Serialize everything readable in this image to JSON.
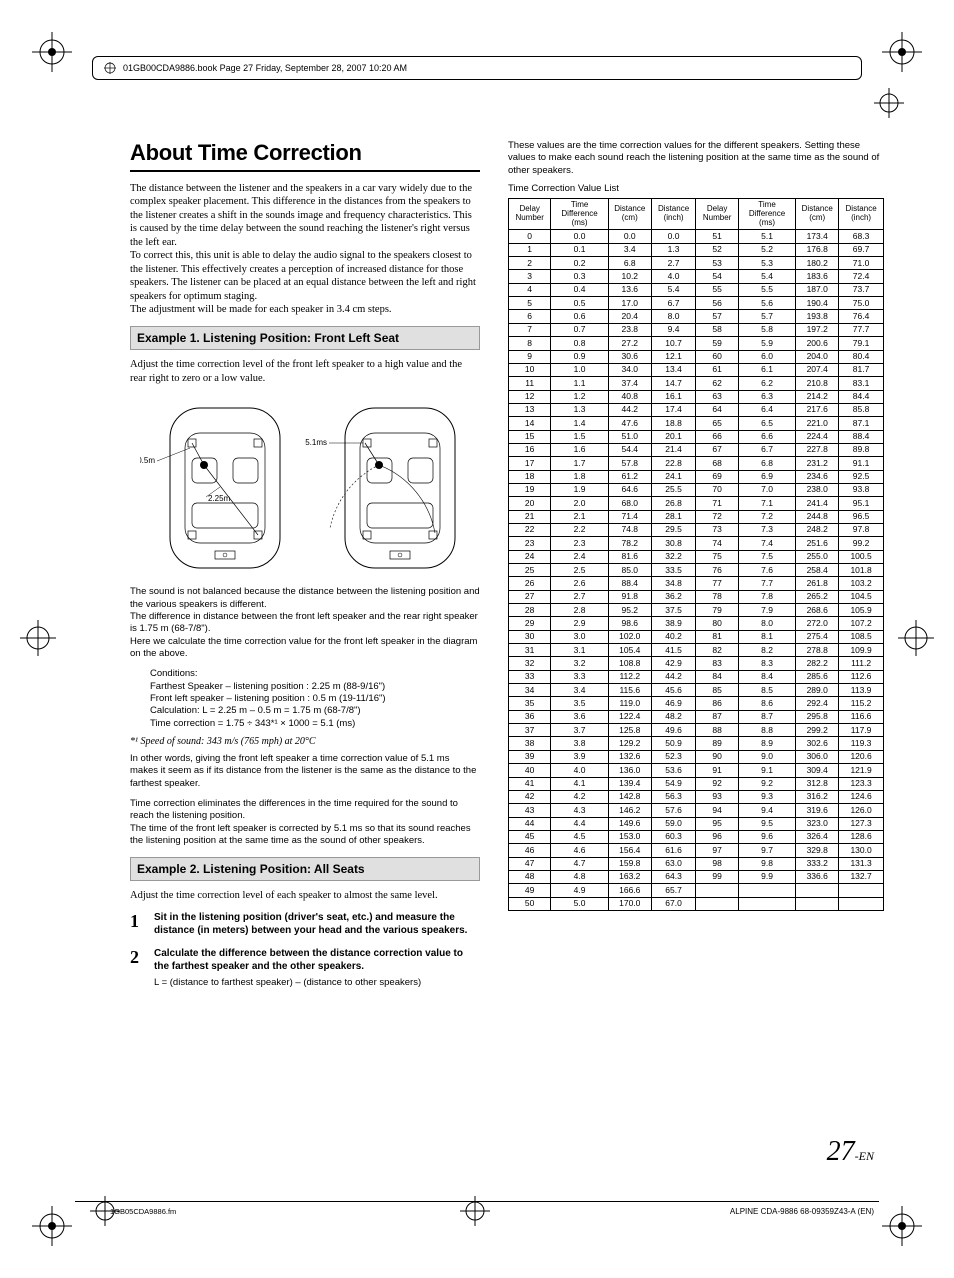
{
  "header": {
    "text": "01GB00CDA9886.book  Page 27  Friday, September 28, 2007  10:20 AM"
  },
  "title": "About Time Correction",
  "intro_para": "The distance between the listener and the speakers in a car vary widely due to the complex speaker placement. This difference in the distances from the speakers to the listener creates a shift in the sounds image and frequency characteristics. This is caused by the time delay between the sound reaching the listener's right versus the left ear.\nTo correct this, this unit is able to delay the audio signal to the speakers closest to the listener. This effectively creates a perception of increased distance for those speakers. The listener can be placed at an equal distance between the left and right speakers for optimum staging.\nThe adjustment will be made for each speaker in 3.4 cm steps.",
  "example1": {
    "heading": "Example 1. Listening Position: Front Left Seat",
    "lead": "Adjust the time correction level of the front left speaker to a high value and the rear right to zero or a low value.",
    "diagram_labels": {
      "d1": "0.5m",
      "d2": "2.25m",
      "d3": "5.1ms"
    },
    "after1": "The sound is not balanced because the distance between the listening position and the various speakers is different.\nThe difference in distance between the front left speaker and the rear right speaker is 1.75 m (68-7/8\").\nHere we calculate the time correction value for the front left speaker in the diagram on the above.",
    "conditions": "Conditions:\nFarthest Speaker – listening position : 2.25 m (88-9/16\")\nFront left speaker – listening position : 0.5 m (19-11/16\")\nCalculation: L = 2.25 m – 0.5 m = 1.75 m (68-7/8\")\nTime correction = 1.75 ÷ 343*¹ × 1000 = 5.1 (ms)",
    "footnote": "*¹ Speed of sound: 343 m/s (765 mph) at 20°C",
    "after2": "In other words, giving the front left speaker a time correction value of 5.1 ms makes it seem as if its distance from the listener is the same as the distance to the farthest speaker.",
    "after3": "Time correction eliminates the differences in the time required for the sound to reach the listening position.\nThe time of the front left speaker is corrected by 5.1 ms so that its sound reaches the listening position at the same time as the sound of other speakers."
  },
  "example2": {
    "heading": "Example 2. Listening Position: All Seats",
    "lead": "Adjust the time correction level of each speaker to almost the same level.",
    "steps": [
      {
        "num": "1",
        "text": "Sit in the listening position (driver's seat, etc.) and measure the distance (in meters) between your head and the various speakers."
      },
      {
        "num": "2",
        "text": "Calculate the difference between the distance correction value to the farthest speaker and the other speakers.",
        "sub": "L = (distance to farthest speaker) – (distance to other speakers)"
      }
    ]
  },
  "right": {
    "top_note": "These values are the time correction values for the different speakers. Setting these values to make each sound reach the listening position at the same time as the sound of other speakers.",
    "caption": "Time Correction Value List",
    "columns": [
      "Delay Number",
      "Time Difference (ms)",
      "Distance (cm)",
      "Distance (inch)",
      "Delay Number",
      "Time Difference (ms)",
      "Distance (cm)",
      "Distance (inch)"
    ],
    "rows": [
      [
        "0",
        "0.0",
        "0.0",
        "0.0",
        "51",
        "5.1",
        "173.4",
        "68.3"
      ],
      [
        "1",
        "0.1",
        "3.4",
        "1.3",
        "52",
        "5.2",
        "176.8",
        "69.7"
      ],
      [
        "2",
        "0.2",
        "6.8",
        "2.7",
        "53",
        "5.3",
        "180.2",
        "71.0"
      ],
      [
        "3",
        "0.3",
        "10.2",
        "4.0",
        "54",
        "5.4",
        "183.6",
        "72.4"
      ],
      [
        "4",
        "0.4",
        "13.6",
        "5.4",
        "55",
        "5.5",
        "187.0",
        "73.7"
      ],
      [
        "5",
        "0.5",
        "17.0",
        "6.7",
        "56",
        "5.6",
        "190.4",
        "75.0"
      ],
      [
        "6",
        "0.6",
        "20.4",
        "8.0",
        "57",
        "5.7",
        "193.8",
        "76.4"
      ],
      [
        "7",
        "0.7",
        "23.8",
        "9.4",
        "58",
        "5.8",
        "197.2",
        "77.7"
      ],
      [
        "8",
        "0.8",
        "27.2",
        "10.7",
        "59",
        "5.9",
        "200.6",
        "79.1"
      ],
      [
        "9",
        "0.9",
        "30.6",
        "12.1",
        "60",
        "6.0",
        "204.0",
        "80.4"
      ],
      [
        "10",
        "1.0",
        "34.0",
        "13.4",
        "61",
        "6.1",
        "207.4",
        "81.7"
      ],
      [
        "11",
        "1.1",
        "37.4",
        "14.7",
        "62",
        "6.2",
        "210.8",
        "83.1"
      ],
      [
        "12",
        "1.2",
        "40.8",
        "16.1",
        "63",
        "6.3",
        "214.2",
        "84.4"
      ],
      [
        "13",
        "1.3",
        "44.2",
        "17.4",
        "64",
        "6.4",
        "217.6",
        "85.8"
      ],
      [
        "14",
        "1.4",
        "47.6",
        "18.8",
        "65",
        "6.5",
        "221.0",
        "87.1"
      ],
      [
        "15",
        "1.5",
        "51.0",
        "20.1",
        "66",
        "6.6",
        "224.4",
        "88.4"
      ],
      [
        "16",
        "1.6",
        "54.4",
        "21.4",
        "67",
        "6.7",
        "227.8",
        "89.8"
      ],
      [
        "17",
        "1.7",
        "57.8",
        "22.8",
        "68",
        "6.8",
        "231.2",
        "91.1"
      ],
      [
        "18",
        "1.8",
        "61.2",
        "24.1",
        "69",
        "6.9",
        "234.6",
        "92.5"
      ],
      [
        "19",
        "1.9",
        "64.6",
        "25.5",
        "70",
        "7.0",
        "238.0",
        "93.8"
      ],
      [
        "20",
        "2.0",
        "68.0",
        "26.8",
        "71",
        "7.1",
        "241.4",
        "95.1"
      ],
      [
        "21",
        "2.1",
        "71.4",
        "28.1",
        "72",
        "7.2",
        "244.8",
        "96.5"
      ],
      [
        "22",
        "2.2",
        "74.8",
        "29.5",
        "73",
        "7.3",
        "248.2",
        "97.8"
      ],
      [
        "23",
        "2.3",
        "78.2",
        "30.8",
        "74",
        "7.4",
        "251.6",
        "99.2"
      ],
      [
        "24",
        "2.4",
        "81.6",
        "32.2",
        "75",
        "7.5",
        "255.0",
        "100.5"
      ],
      [
        "25",
        "2.5",
        "85.0",
        "33.5",
        "76",
        "7.6",
        "258.4",
        "101.8"
      ],
      [
        "26",
        "2.6",
        "88.4",
        "34.8",
        "77",
        "7.7",
        "261.8",
        "103.2"
      ],
      [
        "27",
        "2.7",
        "91.8",
        "36.2",
        "78",
        "7.8",
        "265.2",
        "104.5"
      ],
      [
        "28",
        "2.8",
        "95.2",
        "37.5",
        "79",
        "7.9",
        "268.6",
        "105.9"
      ],
      [
        "29",
        "2.9",
        "98.6",
        "38.9",
        "80",
        "8.0",
        "272.0",
        "107.2"
      ],
      [
        "30",
        "3.0",
        "102.0",
        "40.2",
        "81",
        "8.1",
        "275.4",
        "108.5"
      ],
      [
        "31",
        "3.1",
        "105.4",
        "41.5",
        "82",
        "8.2",
        "278.8",
        "109.9"
      ],
      [
        "32",
        "3.2",
        "108.8",
        "42.9",
        "83",
        "8.3",
        "282.2",
        "111.2"
      ],
      [
        "33",
        "3.3",
        "112.2",
        "44.2",
        "84",
        "8.4",
        "285.6",
        "112.6"
      ],
      [
        "34",
        "3.4",
        "115.6",
        "45.6",
        "85",
        "8.5",
        "289.0",
        "113.9"
      ],
      [
        "35",
        "3.5",
        "119.0",
        "46.9",
        "86",
        "8.6",
        "292.4",
        "115.2"
      ],
      [
        "36",
        "3.6",
        "122.4",
        "48.2",
        "87",
        "8.7",
        "295.8",
        "116.6"
      ],
      [
        "37",
        "3.7",
        "125.8",
        "49.6",
        "88",
        "8.8",
        "299.2",
        "117.9"
      ],
      [
        "38",
        "3.8",
        "129.2",
        "50.9",
        "89",
        "8.9",
        "302.6",
        "119.3"
      ],
      [
        "39",
        "3.9",
        "132.6",
        "52.3",
        "90",
        "9.0",
        "306.0",
        "120.6"
      ],
      [
        "40",
        "4.0",
        "136.0",
        "53.6",
        "91",
        "9.1",
        "309.4",
        "121.9"
      ],
      [
        "41",
        "4.1",
        "139.4",
        "54.9",
        "92",
        "9.2",
        "312.8",
        "123.3"
      ],
      [
        "42",
        "4.2",
        "142.8",
        "56.3",
        "93",
        "9.3",
        "316.2",
        "124.6"
      ],
      [
        "43",
        "4.3",
        "146.2",
        "57.6",
        "94",
        "9.4",
        "319.6",
        "126.0"
      ],
      [
        "44",
        "4.4",
        "149.6",
        "59.0",
        "95",
        "9.5",
        "323.0",
        "127.3"
      ],
      [
        "45",
        "4.5",
        "153.0",
        "60.3",
        "96",
        "9.6",
        "326.4",
        "128.6"
      ],
      [
        "46",
        "4.6",
        "156.4",
        "61.6",
        "97",
        "9.7",
        "329.8",
        "130.0"
      ],
      [
        "47",
        "4.7",
        "159.8",
        "63.0",
        "98",
        "9.8",
        "333.2",
        "131.3"
      ],
      [
        "48",
        "4.8",
        "163.2",
        "64.3",
        "99",
        "9.9",
        "336.6",
        "132.7"
      ],
      [
        "49",
        "4.9",
        "166.6",
        "65.7",
        "",
        "",
        "",
        ""
      ],
      [
        "50",
        "5.0",
        "170.0",
        "67.0",
        "",
        "",
        "",
        ""
      ]
    ]
  },
  "page_number": {
    "num": "27",
    "suffix": "-EN"
  },
  "footer_left": "1GB05CDA9886.fm",
  "footer_right": "ALPINE CDA-9886 68-09359Z43-A (EN)"
}
